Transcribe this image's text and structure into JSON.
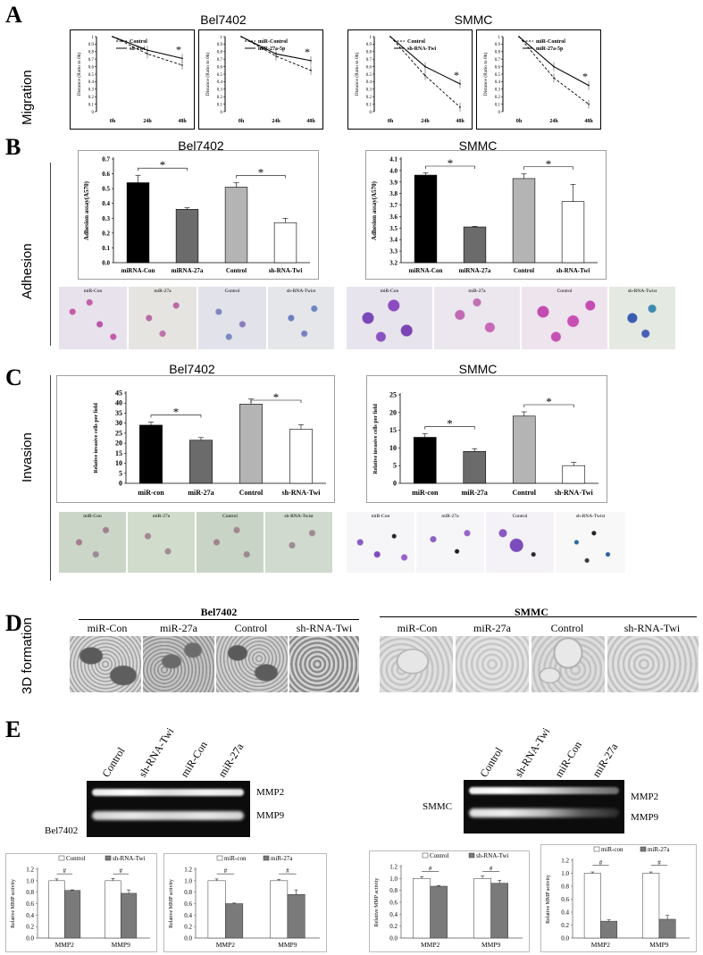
{
  "panels": {
    "A": {
      "letter": "A",
      "section": "Migration",
      "titles": [
        "Bel7402",
        "SMMC"
      ]
    },
    "B": {
      "letter": "B",
      "section": "Adhesion",
      "titles": [
        "Bel7402",
        "SMMC"
      ]
    },
    "C": {
      "letter": "C",
      "section": "Invasion",
      "titles": [
        "Bel7402",
        "SMMC"
      ]
    },
    "D": {
      "letter": "D",
      "section": "3D formation",
      "groups": [
        "Bel7402",
        "SMMC"
      ],
      "labels": [
        "miR-Con",
        "miR-27a",
        "Control",
        "sh-RNA-Twi",
        "miR-Con",
        "miR-27a",
        "Control",
        "sh-RNA-Twi"
      ]
    },
    "E": {
      "letter": "E",
      "cells": [
        "Bel7402",
        "SMMC"
      ],
      "lanes": [
        "Control",
        "sh-RNA-Twi",
        "miR-Con",
        "miR-27a"
      ],
      "bands": [
        "MMP2",
        "MMP9"
      ]
    }
  },
  "micro_labels": {
    "B_bel": [
      "miR-Con",
      "miR-27a",
      "Control",
      "sh-RNA-Twist"
    ],
    "B_smmc": [
      "miR-Con",
      "miR-27a",
      "Control",
      "sh-RNA-Twist"
    ],
    "C_bel": [
      "miR-Con",
      "miR-27a",
      "Control",
      "sh-RNA-Twist"
    ],
    "C_smmc": [
      "miR-Con",
      "miR-27a",
      "Control",
      "sh-RNA-Twist"
    ]
  },
  "colors": {
    "black": "#000000",
    "dark_gray": "#6b6b6b",
    "light_gray": "#b4b4b4",
    "white": "#ffffff"
  },
  "chart_data": [
    {
      "type": "line",
      "panel": "A",
      "cell": "Bel7402",
      "ylabel": "Distance (Ratio to 0h)",
      "x": [
        "0h",
        "24h",
        "48h"
      ],
      "ylim": [
        0,
        1
      ],
      "yticks": [
        0,
        0.1,
        0.2,
        0.3,
        0.4,
        0.5,
        0.6,
        0.7,
        0.8,
        0.9,
        1
      ],
      "series": [
        {
          "name": "Control",
          "values": [
            1,
            0.77,
            0.62
          ],
          "style": "dashed"
        },
        {
          "name": "sh-Twi",
          "values": [
            1,
            0.82,
            0.71
          ],
          "style": "solid"
        }
      ],
      "annotation": "*"
    },
    {
      "type": "line",
      "panel": "A",
      "cell": "Bel7402",
      "ylabel": "Distance (Ratio to 0h)",
      "x": [
        "0h",
        "24h",
        "48h"
      ],
      "ylim": [
        0,
        1
      ],
      "yticks": [
        0,
        0.1,
        0.2,
        0.3,
        0.4,
        0.5,
        0.6,
        0.7,
        0.8,
        0.9,
        1
      ],
      "series": [
        {
          "name": "miR-Control",
          "values": [
            1,
            0.74,
            0.55
          ],
          "style": "dashed"
        },
        {
          "name": "miR-27a-5p",
          "values": [
            1,
            0.77,
            0.68
          ],
          "style": "solid"
        }
      ],
      "annotation": "*"
    },
    {
      "type": "line",
      "panel": "A",
      "cell": "SMMC",
      "ylabel": "Distance (Ratio to 0h)",
      "x": [
        "0h",
        "24h",
        "48h"
      ],
      "ylim": [
        0,
        1
      ],
      "yticks": [
        0,
        0.1,
        0.2,
        0.3,
        0.4,
        0.5,
        0.6,
        0.7,
        0.8,
        0.9,
        1
      ],
      "series": [
        {
          "name": "Control",
          "values": [
            1,
            0.48,
            0.06
          ],
          "style": "dashed"
        },
        {
          "name": "sh-RNA-Twi",
          "values": [
            1,
            0.6,
            0.37
          ],
          "style": "solid"
        }
      ],
      "annotation": "*"
    },
    {
      "type": "line",
      "panel": "A",
      "cell": "SMMC",
      "ylabel": "Distance (Ratio to 0h)",
      "x": [
        "0h",
        "24h",
        "48h"
      ],
      "ylim": [
        0,
        1
      ],
      "yticks": [
        0,
        0.1,
        0.2,
        0.3,
        0.4,
        0.5,
        0.6,
        0.7,
        0.8,
        0.9,
        1
      ],
      "series": [
        {
          "name": "miR-Control",
          "values": [
            1,
            0.45,
            0.1
          ],
          "style": "dashed"
        },
        {
          "name": "miR-27a-5p",
          "values": [
            1,
            0.6,
            0.35
          ],
          "style": "solid"
        }
      ],
      "annotation": "*"
    },
    {
      "type": "bar",
      "panel": "B",
      "cell": "Bel7402",
      "ylabel": "Adhesion assay(A570)",
      "categories": [
        "miRNA-Con",
        "miRNA-27a",
        "Control",
        "sh-RNA-Twi"
      ],
      "values": [
        0.54,
        0.36,
        0.51,
        0.27
      ],
      "errors": [
        0.05,
        0.01,
        0.03,
        0.03
      ],
      "fills": [
        "black",
        "dark_gray",
        "light_gray",
        "white"
      ],
      "ylim": [
        0,
        0.7
      ],
      "yticks": [
        "0.0",
        "0.1",
        "0.2",
        "0.3",
        "0.4",
        "0.5",
        "0.6",
        "0.7"
      ],
      "annotations": [
        "*",
        "*"
      ]
    },
    {
      "type": "bar",
      "panel": "B",
      "cell": "SMMC",
      "ylabel": "Adhesion assay(A570)",
      "categories": [
        "miRNA-Con",
        "miRNA-27a",
        "Control",
        "sh-RNA-Twi"
      ],
      "values": [
        3.96,
        3.51,
        3.93,
        3.73
      ],
      "errors": [
        0.02,
        0.005,
        0.04,
        0.15
      ],
      "fills": [
        "black",
        "dark_gray",
        "light_gray",
        "white"
      ],
      "ylim": [
        3.2,
        4.1
      ],
      "yticks": [
        "3.2",
        "3.3",
        "3.4",
        "3.5",
        "3.6",
        "3.7",
        "3.8",
        "3.9",
        "4.0",
        "4.1"
      ],
      "annotations": [
        "*",
        "*"
      ]
    },
    {
      "type": "bar",
      "panel": "C",
      "cell": "Bel7402",
      "ylabel": "Relative invasive cells per field",
      "categories": [
        "miR-con",
        "miR-27a",
        "Control",
        "sh-RNA-Twi"
      ],
      "values": [
        29,
        21.5,
        39.5,
        27
      ],
      "errors": [
        1.5,
        1.3,
        2.5,
        2.2
      ],
      "fills": [
        "black",
        "dark_gray",
        "light_gray",
        "white"
      ],
      "ylim": [
        0,
        45
      ],
      "yticks": [
        "0",
        "5",
        "10",
        "15",
        "20",
        "25",
        "30",
        "35",
        "40",
        "45"
      ],
      "annotations": [
        "*",
        "*"
      ]
    },
    {
      "type": "bar",
      "panel": "C",
      "cell": "SMMC",
      "ylabel": "Relative invasive cells per field",
      "categories": [
        "miR-con",
        "miR-27a",
        "Control",
        "sh-RNA-Twi"
      ],
      "values": [
        13,
        9,
        19,
        5
      ],
      "errors": [
        1,
        0.8,
        1.2,
        0.9
      ],
      "fills": [
        "black",
        "dark_gray",
        "light_gray",
        "white"
      ],
      "ylim": [
        0,
        25
      ],
      "yticks": [
        "0",
        "5",
        "10",
        "15",
        "20",
        "25"
      ],
      "annotations": [
        "*",
        "*"
      ]
    },
    {
      "type": "bar",
      "panel": "E",
      "cell": "Bel7402",
      "ylabel": "Relative MMP activity",
      "categories": [
        "MMP2",
        "MMP9"
      ],
      "series": [
        {
          "name": "Control",
          "values": [
            1.0,
            1.0
          ],
          "errors": [
            0.03,
            0.04
          ]
        },
        {
          "name": "sh-RNA-Twi",
          "values": [
            0.83,
            0.78
          ],
          "errors": [
            0.01,
            0.06
          ]
        }
      ],
      "ylim": [
        0,
        1.2
      ],
      "yticks": [
        "0.0",
        "0.2",
        "0.4",
        "0.6",
        "0.8",
        "1.0",
        "1.2"
      ],
      "annotations": [
        "#",
        "#"
      ]
    },
    {
      "type": "bar",
      "panel": "E",
      "cell": "Bel7402",
      "ylabel": "Relative MMP activity",
      "categories": [
        "MMP2",
        "MMP9"
      ],
      "series": [
        {
          "name": "miR-con",
          "values": [
            1.0,
            1.0
          ],
          "errors": [
            0.03,
            0.02
          ]
        },
        {
          "name": "miR-27a",
          "values": [
            0.6,
            0.76
          ],
          "errors": [
            0.01,
            0.08
          ]
        }
      ],
      "ylim": [
        0,
        1.2
      ],
      "yticks": [
        "0.0",
        "0.2",
        "0.4",
        "0.6",
        "0.8",
        "1.0",
        "1.2"
      ],
      "annotations": [
        "#",
        "#"
      ]
    },
    {
      "type": "bar",
      "panel": "E",
      "cell": "SMMC",
      "ylabel": "Relative MMP activity",
      "categories": [
        "MMP2",
        "MMP9"
      ],
      "series": [
        {
          "name": "Control",
          "values": [
            1.0,
            1.0
          ],
          "errors": [
            0.03,
            0.04
          ]
        },
        {
          "name": "sh-RNA-Twi",
          "values": [
            0.87,
            0.92
          ],
          "errors": [
            0.01,
            0.05
          ]
        }
      ],
      "ylim": [
        0,
        1.2
      ],
      "yticks": [
        "0.0",
        "0.2",
        "0.4",
        "0.6",
        "0.8",
        "1.0",
        "1.2"
      ],
      "annotations": [
        "#",
        "#"
      ]
    },
    {
      "type": "bar",
      "panel": "E",
      "cell": "SMMC",
      "ylabel": "Relative MMP activity",
      "categories": [
        "MMP2",
        "MMP9"
      ],
      "series": [
        {
          "name": "miR-con",
          "values": [
            1.0,
            1.0
          ],
          "errors": [
            0.02,
            0.02
          ]
        },
        {
          "name": "miR-27a",
          "values": [
            0.26,
            0.29
          ],
          "errors": [
            0.02,
            0.06
          ]
        }
      ],
      "ylim": [
        0,
        1.2
      ],
      "yticks": [
        "0.0",
        "0.2",
        "0.4",
        "0.6",
        "0.8",
        "1.0",
        "1.2"
      ],
      "annotations": [
        "#",
        "#"
      ]
    }
  ]
}
